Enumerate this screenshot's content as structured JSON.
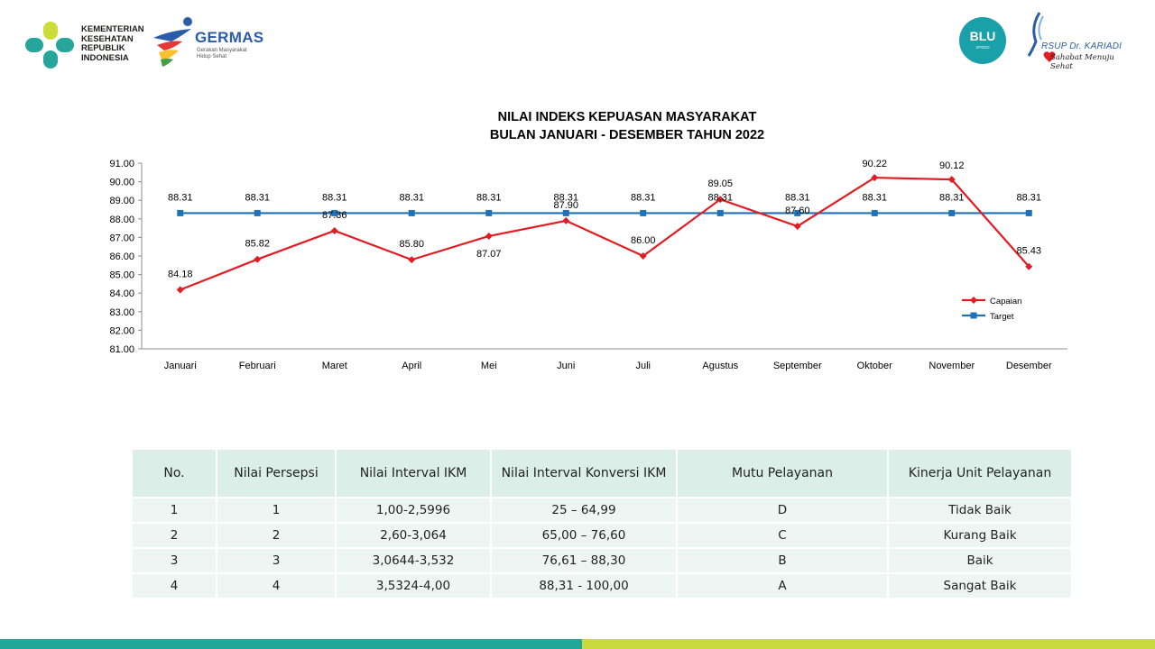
{
  "header": {
    "kemenkes_text": [
      "KEMENTERIAN",
      "KESEHATAN",
      "REPUBLIK",
      "INDONESIA"
    ],
    "germas_title": "GERMAS",
    "germas_sub": [
      "Gerakan Masyarakat",
      "Hidup Sehat"
    ],
    "blu_text": "BLU",
    "blu_sub": "SPEED",
    "kariadi_name": "RSUP Dr. KARIADI",
    "kariadi_tagline": "Sahabat Menuju Sehat"
  },
  "colors": {
    "capaian": "#e31b23",
    "target": "#1f72b8",
    "teal": "#1fa79a",
    "lime": "#c9da3c"
  },
  "chart_data": {
    "type": "line",
    "title": "NILAI INDEKS KEPUASAN MASYARAKAT",
    "subtitle": "BULAN JANUARI - DESEMBER TAHUN 2022",
    "categories": [
      "Januari",
      "Februari",
      "Maret",
      "April",
      "Mei",
      "Juni",
      "Juli",
      "Agustus",
      "September",
      "Oktober",
      "November",
      "Desember"
    ],
    "series": [
      {
        "name": "Capaian",
        "color": "#e31b23",
        "marker": "diamond",
        "values": [
          84.18,
          85.82,
          87.36,
          85.8,
          87.07,
          87.9,
          86.0,
          89.05,
          87.6,
          90.22,
          90.12,
          85.43
        ],
        "labels": [
          "84.18",
          "85.82",
          "87.36",
          "85.80",
          "87.07",
          "87.90",
          "86.00",
          "89.05",
          "87.60",
          "90.22",
          "90.12",
          "85.43"
        ]
      },
      {
        "name": "Target",
        "color": "#1f72b8",
        "marker": "square",
        "values": [
          88.31,
          88.31,
          88.31,
          88.31,
          88.31,
          88.31,
          88.31,
          88.31,
          88.31,
          88.31,
          88.31,
          88.31
        ],
        "labels": [
          "88.31",
          "88.31",
          "88.31",
          "88.31",
          "88.31",
          "88.31",
          "88.31",
          "88.31",
          "88.31",
          "88.31",
          "88.31",
          "88.31"
        ]
      }
    ],
    "ylim": [
      81,
      91
    ],
    "yticks": [
      "81.00",
      "82.00",
      "83.00",
      "84.00",
      "85.00",
      "86.00",
      "87.00",
      "88.00",
      "89.00",
      "90.00",
      "91.00"
    ],
    "xlabel": "",
    "ylabel": "",
    "grid": false,
    "legend": "right"
  },
  "table": {
    "headers": [
      "No.",
      "Nilai Persepsi",
      "Nilai Interval IKM",
      "Nilai Interval Konversi IKM",
      "Mutu Pelayanan",
      "Kinerja Unit Pelayanan"
    ],
    "rows": [
      [
        "1",
        "1",
        "1,00-2,5996",
        "25 – 64,99",
        "D",
        "Tidak Baik"
      ],
      [
        "2",
        "2",
        "2,60-3,064",
        "65,00 – 76,60",
        "C",
        "Kurang Baik"
      ],
      [
        "3",
        "3",
        "3,0644-3,532",
        "76,61 – 88,30",
        "B",
        "Baik"
      ],
      [
        "4",
        "4",
        "3,5324-4,00",
        "88,31 - 100,00",
        "A",
        "Sangat Baik"
      ]
    ]
  }
}
